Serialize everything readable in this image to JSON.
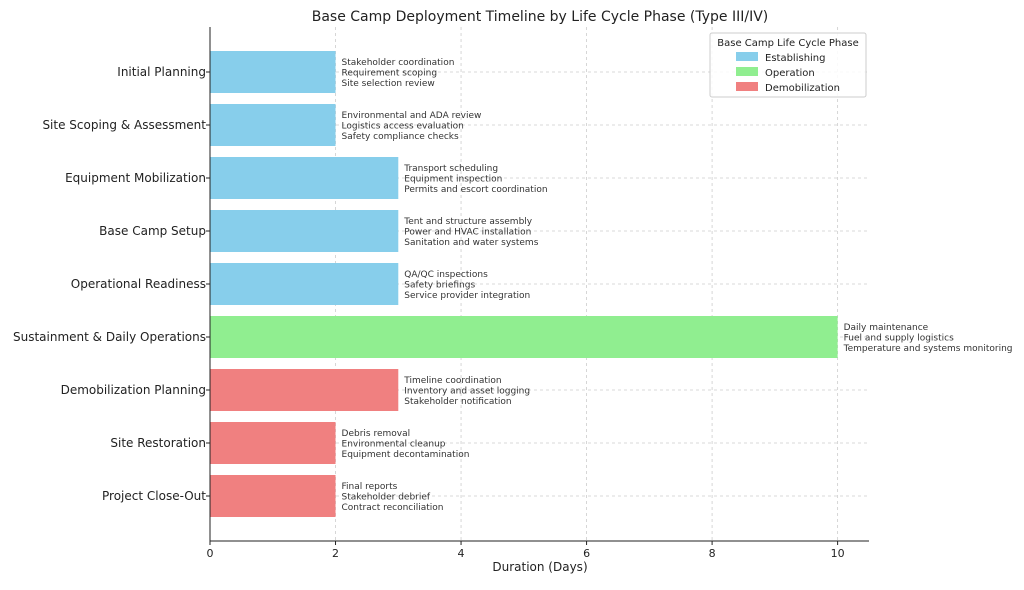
{
  "chart_data": {
    "type": "bar",
    "orientation": "horizontal",
    "title": "Base Camp Deployment Timeline by Life Cycle Phase (Type III/IV)",
    "xlabel": "Duration (Days)",
    "ylabel": "",
    "xlim": [
      0,
      10.5
    ],
    "xticks": [
      0,
      2,
      4,
      6,
      8,
      10
    ],
    "grid": true,
    "legend": {
      "title": "Base Camp Life Cycle Phase",
      "placement": "top-right",
      "entries": [
        {
          "name": "Establishing",
          "color": "#87ceeb"
        },
        {
          "name": "Operation",
          "color": "#90ee90"
        },
        {
          "name": "Demobilization",
          "color": "#f08080"
        }
      ]
    },
    "categories": [
      "Initial Planning",
      "Site Scoping & Assessment",
      "Equipment Mobilization",
      "Base Camp Setup",
      "Operational Readiness",
      "Sustainment & Daily Operations",
      "Demobilization Planning",
      "Site Restoration",
      "Project Close-Out"
    ],
    "values": [
      2,
      2,
      3,
      3,
      3,
      10,
      3,
      2,
      2
    ],
    "phases": [
      "Establishing",
      "Establishing",
      "Establishing",
      "Establishing",
      "Establishing",
      "Operation",
      "Demobilization",
      "Demobilization",
      "Demobilization"
    ],
    "annotations": [
      [
        "Stakeholder coordination",
        "Requirement scoping",
        "Site selection review"
      ],
      [
        "Environmental and ADA review",
        "Logistics access evaluation",
        "Safety compliance checks"
      ],
      [
        "Transport scheduling",
        "Equipment inspection",
        "Permits and escort coordination"
      ],
      [
        "Tent and structure assembly",
        "Power and HVAC installation",
        "Sanitation and water systems"
      ],
      [
        "QA/QC inspections",
        "Safety briefings",
        "Service provider integration"
      ],
      [
        "Daily maintenance",
        "Fuel and supply logistics",
        "Temperature and systems monitoring"
      ],
      [
        "Timeline coordination",
        "Inventory and asset logging",
        "Stakeholder notification"
      ],
      [
        "Debris removal",
        "Environmental cleanup",
        "Equipment decontamination"
      ],
      [
        "Final reports",
        "Stakeholder debrief",
        "Contract reconciliation"
      ]
    ]
  }
}
